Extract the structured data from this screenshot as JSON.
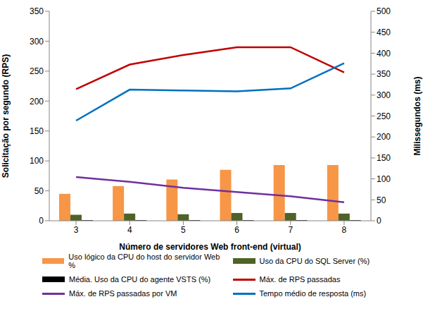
{
  "chart_data": {
    "type": "combo",
    "x_label": "Número de servidores Web front-end (virtual)",
    "y_label": "Solicitação por segundo (RPS)",
    "y2_label": "Milissegundos (ms)",
    "categories": [
      "3",
      "4",
      "5",
      "6",
      "7",
      "8"
    ],
    "ylim": [
      0,
      350
    ],
    "yticks": [
      0,
      50,
      100,
      150,
      200,
      250,
      300,
      350
    ],
    "y2lim": [
      0,
      500
    ],
    "y2ticks": [
      0,
      50,
      100,
      150,
      200,
      250,
      300,
      350,
      400,
      450,
      500
    ],
    "grid": false,
    "legend": "bottom",
    "series": [
      {
        "name": "Uso lógico da CPU do host do servidor Web %",
        "type": "bar",
        "color": "#f79646",
        "values": [
          45,
          58,
          69,
          85,
          93,
          93
        ]
      },
      {
        "name": "Uso da CPU do SQL Server (%)",
        "type": "bar",
        "color": "#4f6228",
        "values": [
          10,
          12,
          11,
          13,
          13,
          12
        ]
      },
      {
        "name": "Média. Uso da CPU do agente VSTS (%)",
        "type": "bar",
        "color": "#000000",
        "values": [
          1,
          1,
          1,
          1,
          1,
          1
        ]
      },
      {
        "name": "Máx. de RPS passadas",
        "type": "line",
        "color": "#c00000",
        "values": [
          220,
          261,
          277,
          290,
          290,
          248
        ]
      },
      {
        "name": "Máx. de RPS passadas por VM",
        "type": "line",
        "color": "#7030a0",
        "values": [
          73,
          65,
          55,
          48,
          41,
          31
        ]
      },
      {
        "name": "Tempo médio de resposta (ms)",
        "type": "line",
        "color": "#0070c0",
        "axis": "y2",
        "values": [
          239,
          313,
          311,
          309,
          316,
          376
        ]
      }
    ]
  }
}
